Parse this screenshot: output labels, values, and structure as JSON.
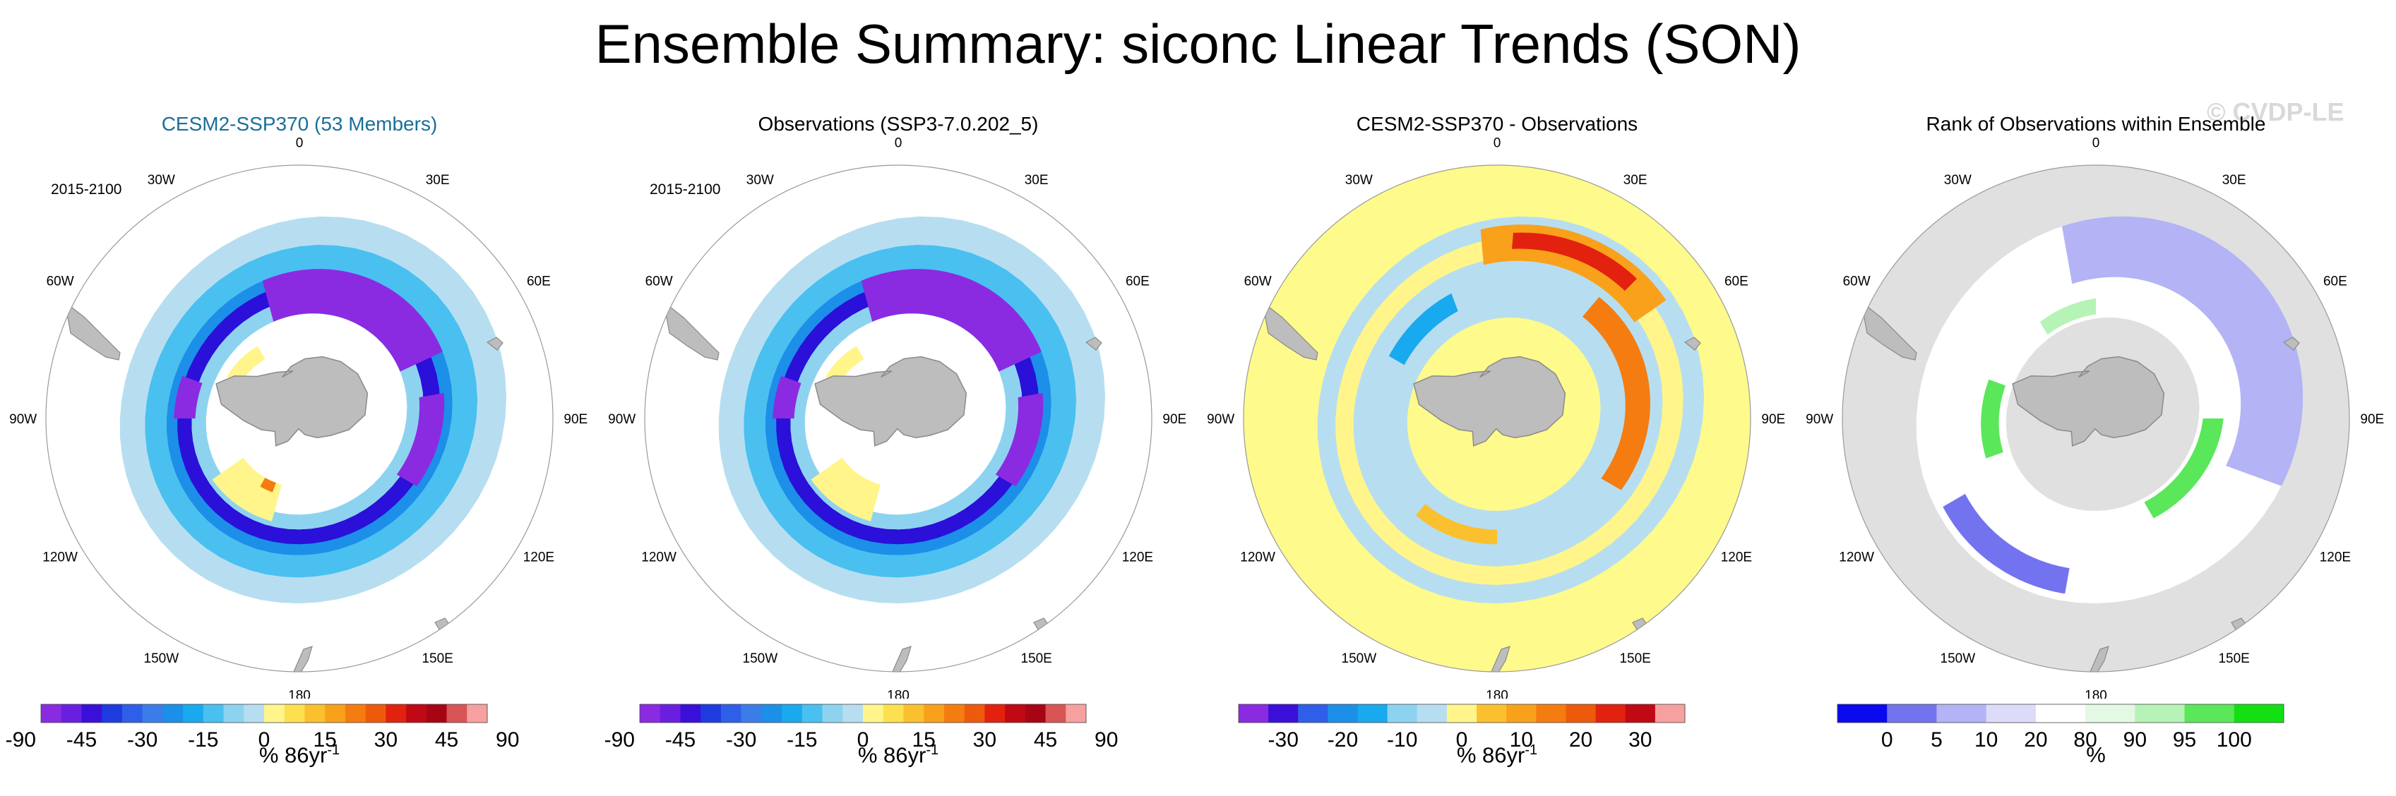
{
  "title": "Ensemble Summary: siconc Linear Trends (SON)",
  "watermark": "© CVDP-LE",
  "chart_data": [
    {
      "type": "heatmap",
      "projection": "south-polar-stereographic",
      "title": "CESM2-SSP370 (53 Members)",
      "period": "2015-2100",
      "lon_labels": [
        "0",
        "30E",
        "60E",
        "90E",
        "120E",
        "150E",
        "180",
        "150W",
        "120W",
        "90W",
        "60W",
        "30W"
      ],
      "colorbar": {
        "colors": [
          "#8a2be2",
          "#6a1fe0",
          "#3a10d8",
          "#1e3be0",
          "#2f5fe8",
          "#3b7de8",
          "#1c8fe8",
          "#19a9ef",
          "#49c0f0",
          "#8dd3f0",
          "#b7def0",
          "#fff58a",
          "#fde050",
          "#fbc02d",
          "#f9a11b",
          "#f57c10",
          "#ee5a0c",
          "#e2220f",
          "#c00914",
          "#a80514",
          "#d95555",
          "#f6a0a0"
        ],
        "ticks": [
          "-90",
          "-45",
          "-30",
          "-15",
          "0",
          "15",
          "30",
          "45",
          "90"
        ]
      },
      "units": "% 86yr",
      "units_exp": "-1"
    },
    {
      "type": "heatmap",
      "projection": "south-polar-stereographic",
      "title": "Observations (SSP3-7.0.202_5)",
      "period": "2015-2100",
      "lon_labels": [
        "0",
        "30E",
        "60E",
        "90E",
        "120E",
        "150E",
        "180",
        "150W",
        "120W",
        "90W",
        "60W",
        "30W"
      ],
      "colorbar": {
        "colors": [
          "#8a2be2",
          "#6a1fe0",
          "#3a10d8",
          "#1e3be0",
          "#2f5fe8",
          "#3b7de8",
          "#1c8fe8",
          "#19a9ef",
          "#49c0f0",
          "#8dd3f0",
          "#b7def0",
          "#fff58a",
          "#fde050",
          "#fbc02d",
          "#f9a11b",
          "#f57c10",
          "#ee5a0c",
          "#e2220f",
          "#c00914",
          "#a80514",
          "#d95555",
          "#f6a0a0"
        ],
        "ticks": [
          "-90",
          "-45",
          "-30",
          "-15",
          "0",
          "15",
          "30",
          "45",
          "90"
        ]
      },
      "units": "% 86yr",
      "units_exp": "-1"
    },
    {
      "type": "heatmap",
      "projection": "south-polar-stereographic",
      "title": "CESM2-SSP370 - Observations",
      "period": "",
      "lon_labels": [
        "0",
        "30E",
        "60E",
        "90E",
        "120E",
        "150E",
        "180",
        "150W",
        "120W",
        "90W",
        "60W",
        "30W"
      ],
      "colorbar": {
        "colors": [
          "#8a2be2",
          "#3a10d8",
          "#2f5fe8",
          "#1c8fe8",
          "#19a9ef",
          "#8dd3f0",
          "#b7def0",
          "#fff58a",
          "#fbc02d",
          "#f9a11b",
          "#f57c10",
          "#ee5a0c",
          "#e2220f",
          "#c00914",
          "#f6a0a0"
        ],
        "ticks": [
          "-30",
          "-20",
          "-10",
          "0",
          "10",
          "20",
          "30"
        ]
      },
      "units": "% 86yr",
      "units_exp": "-1"
    },
    {
      "type": "heatmap",
      "projection": "south-polar-stereographic",
      "title": "Rank of Observations within Ensemble",
      "period": "",
      "lon_labels": [
        "0",
        "30E",
        "60E",
        "90E",
        "120E",
        "150E",
        "180",
        "150W",
        "120W",
        "90W",
        "60W",
        "30W"
      ],
      "colorbar": {
        "colors": [
          "#0a0aee",
          "#7373f0",
          "#b3b3f5",
          "#dcdcf8",
          "#ffffff",
          "#e3f9e3",
          "#b6f3b6",
          "#5ae75a",
          "#12e012"
        ],
        "ticks": [
          "0",
          "5",
          "10",
          "20",
          "80",
          "90",
          "95",
          "100"
        ]
      },
      "units": "%",
      "units_exp": ""
    }
  ]
}
